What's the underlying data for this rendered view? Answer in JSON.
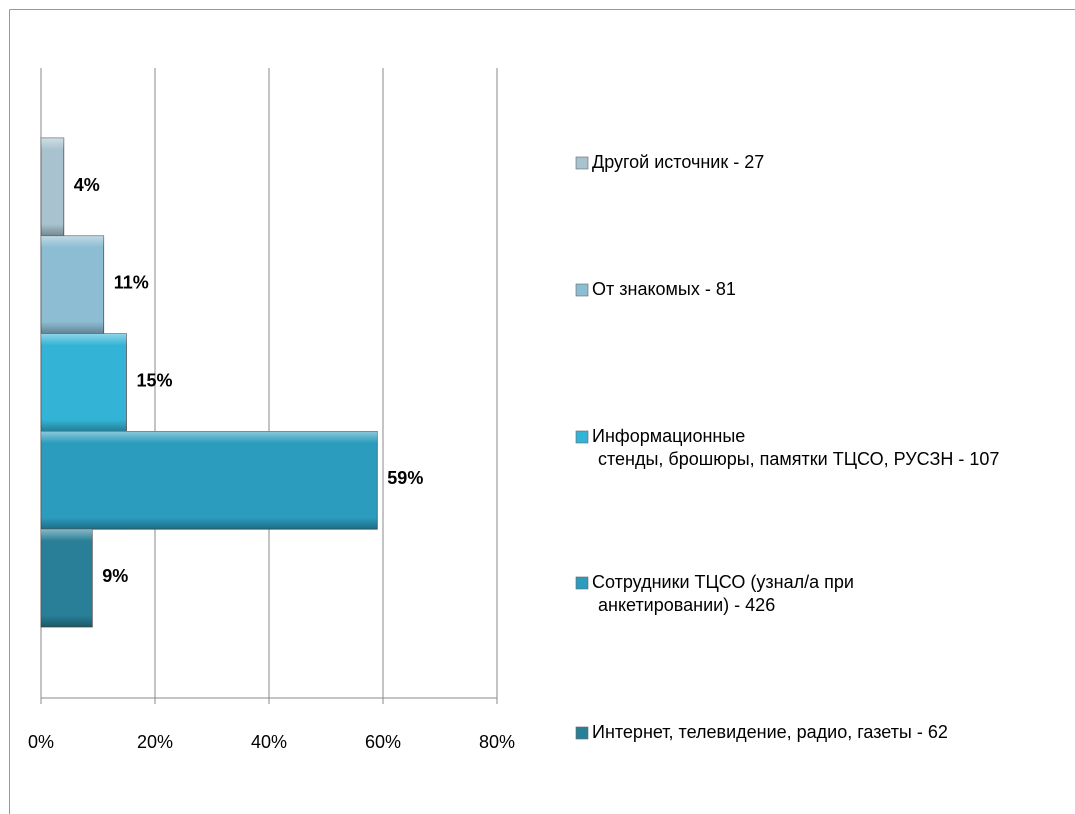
{
  "chart_data": {
    "type": "bar",
    "orientation": "horizontal",
    "categories": [
      [
        "Другой источник - 27"
      ],
      [
        "От знакомых - 81"
      ],
      [
        "Информационные",
        "стенды, брошюры, памятки ТЦСО, РУСЗН - 107"
      ],
      [
        "Сотрудники ТЦСО (узнал/а при",
        "анкетировании) - 426"
      ],
      [
        "Интернет, телевидение, радио, газеты - 62"
      ]
    ],
    "values": [
      4,
      11,
      15,
      59,
      9
    ],
    "value_labels": [
      "4%",
      "11%",
      "15%",
      "59%",
      "9%"
    ],
    "colors": [
      "#a8c3cf",
      "#8cbdd2",
      "#33b4d6",
      "#2b9cbd",
      "#287f97"
    ],
    "xlim": [
      0,
      80
    ],
    "xticks": [
      {
        "value": 0,
        "label": "0%"
      },
      {
        "value": 20,
        "label": "20%"
      },
      {
        "value": 40,
        "label": "40%"
      },
      {
        "value": 60,
        "label": "60%"
      },
      {
        "value": 80,
        "label": "80%"
      }
    ],
    "grid": true,
    "legend": "right"
  }
}
